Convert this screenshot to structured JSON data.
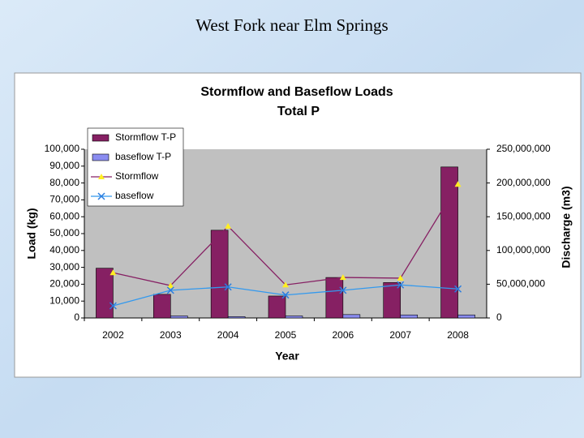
{
  "slide_title": "West Fork near Elm Springs",
  "chart_data": {
    "type": "bar",
    "title": "Stormflow and Baseflow Loads",
    "subtitle": "Total P",
    "x_label": "Year",
    "y_label": "Load (kg)",
    "y2_label": "Discharge (m3)",
    "categories": [
      "2002",
      "2003",
      "2004",
      "2005",
      "2006",
      "2007",
      "2008"
    ],
    "series": [
      {
        "name": "Stormflow T-P",
        "type": "bar",
        "color": "#862063",
        "values": [
          29500,
          14000,
          52000,
          13000,
          24000,
          21000,
          89500
        ]
      },
      {
        "name": "baseflow T-P",
        "type": "bar",
        "color": "#8a8cf0",
        "values": [
          0,
          1200,
          800,
          1200,
          2000,
          1800,
          1800
        ]
      },
      {
        "name": "Stormflow",
        "type": "line",
        "axis": "y2",
        "color": "#862063",
        "marker": "triangle",
        "marker_color": "#ffee22",
        "values": [
          67000000,
          48000000,
          136000000,
          49000000,
          60000000,
          59000000,
          198000000
        ]
      },
      {
        "name": "baseflow",
        "type": "line",
        "axis": "y2",
        "color": "#3399ee",
        "marker": "x",
        "marker_color": "#2a7de0",
        "values": [
          18000000,
          41000000,
          46000000,
          34000000,
          41000000,
          49000000,
          43000000
        ]
      }
    ],
    "ylim": [
      0,
      100000
    ],
    "yticks": [
      0,
      {
        "value": 10000,
        "label": "10,000"
      },
      {
        "value": 20000,
        "label": "20,000"
      },
      {
        "value": 30000,
        "label": "30,000"
      },
      {
        "value": 40000,
        "label": "40,000"
      },
      {
        "value": 50000,
        "label": "50,000"
      },
      {
        "value": 60000,
        "label": "60,000"
      },
      {
        "value": 70000,
        "label": "70,000"
      },
      {
        "value": 80000,
        "label": "80,000"
      },
      {
        "value": 90000,
        "label": "90,000"
      },
      {
        "value": 100000,
        "label": "100,000"
      }
    ],
    "y2lim": [
      0,
      250000000
    ],
    "y2ticks": [
      0,
      {
        "value": 50000000,
        "label": "50,000,000"
      },
      {
        "value": 100000000,
        "label": "100,000,000"
      },
      {
        "value": 150000000,
        "label": "150,000,000"
      },
      {
        "value": 200000000,
        "label": "200,000,000"
      },
      {
        "value": 250000000,
        "label": "250,000,000"
      }
    ],
    "grid": false,
    "legend": "upper left"
  }
}
